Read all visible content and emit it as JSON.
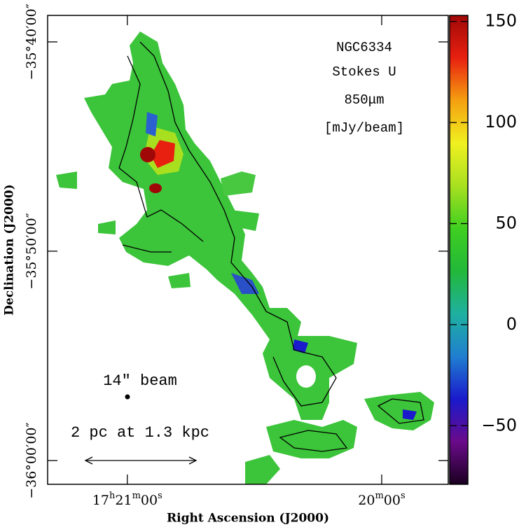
{
  "chart_data": {
    "type": "image",
    "annotations": [
      "NGC6334",
      "Stokes U",
      "850μm",
      "[mJy/beam]"
    ],
    "beam_label": "14″ beam",
    "scale_label": "2 pc at 1.3 kpc",
    "xlabel": "Right Ascension (J2000)",
    "ylabel": "Declination (J2000)",
    "xlim": [
      62478.8,
      62384.3
    ],
    "xticks": [
      {
        "value": 62460,
        "label": "17h21m00s"
      },
      {
        "value": 62400,
        "label": "20m00s"
      }
    ],
    "ylim": [
      -35.6456,
      -36.0189
    ],
    "yticks": [
      {
        "value": -35.6667,
        "label": "−35°40′00″"
      },
      {
        "value": -35.8333,
        "label": "−35°50′00″"
      },
      {
        "value": -36.0,
        "label": "−36°00′00″"
      }
    ],
    "colorbar": {
      "lim": [
        -79,
        153
      ],
      "ticks": [
        {
          "value": -50,
          "label": "−50"
        },
        0,
        50,
        100,
        150
      ],
      "colormap": [
        "#1a0020",
        "#6a0a8a",
        "#1a1acc",
        "#1f7fd0",
        "#1fb0a0",
        "#22b83a",
        "#3fcf20",
        "#a8e020",
        "#f0f020",
        "#f5a010",
        "#e82010",
        "#a00808"
      ]
    }
  }
}
